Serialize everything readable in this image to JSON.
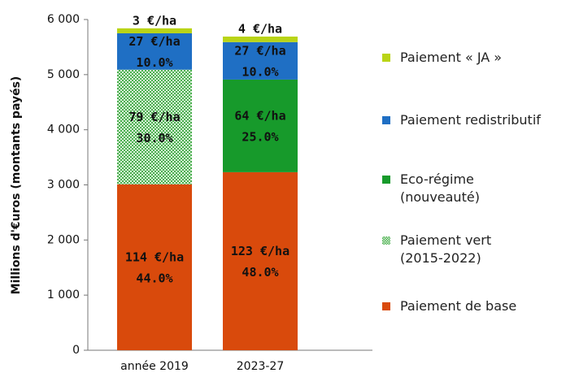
{
  "chart_data": {
    "type": "stacked_bar",
    "y_label": "Millions  d'€uros (montants payés)",
    "categories": [
      "année 2019",
      "2023-27"
    ],
    "series": [
      {
        "name": "Paiement de base",
        "color": "#d94a0c",
        "values": [
          3010,
          3230
        ],
        "per_ha": [
          "114 €/ha",
          "123 €/ha"
        ],
        "share": [
          "44.0%",
          "48.0%"
        ]
      },
      {
        "name": "Paiement vert\n(2015-2022)",
        "color": "#4caf50",
        "pattern": "dots",
        "values": [
          2080,
          null
        ],
        "per_ha": [
          "79 €/ha",
          null
        ],
        "share": [
          "30.0%",
          null
        ]
      },
      {
        "name": "Eco-régime\n(nouveauté)",
        "color": "#179a2b",
        "values": [
          null,
          1680
        ],
        "per_ha": [
          null,
          "64 €/ha"
        ],
        "share": [
          null,
          "25.0%"
        ]
      },
      {
        "name": "Paiement redistributif",
        "color": "#1f6fc4",
        "values": [
          660,
          680
        ],
        "per_ha": [
          "27 €/ha",
          "27 €/ha"
        ],
        "share": [
          "10.0%",
          "10.0%"
        ]
      },
      {
        "name": "Paiement « JA »",
        "color": "#b9d416",
        "values": [
          90,
          100
        ],
        "per_ha": [
          "3 €/ha",
          "4 €/ha"
        ],
        "share": [
          null,
          null
        ]
      }
    ],
    "ylim": [
      0,
      6000
    ],
    "yticks": [
      0,
      {
        "value": 1000,
        "label": "1 000"
      },
      {
        "value": 2000,
        "label": "2 000"
      },
      {
        "value": 3000,
        "label": "3 000"
      },
      {
        "value": 4000,
        "label": "4 000"
      },
      {
        "value": 5000,
        "label": "5 000"
      },
      {
        "value": 6000,
        "label": "6 000"
      }
    ],
    "legend": "right"
  }
}
